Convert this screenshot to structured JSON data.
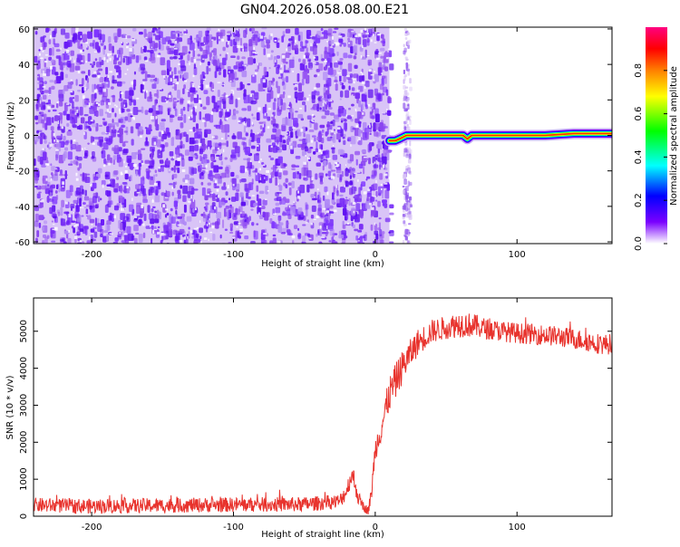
{
  "title": "GN04.2026.058.08.00.E21",
  "chart_data": [
    {
      "type": "heatmap",
      "xlabel": "Height of straight line (km)",
      "ylabel": "Frequency (Hz)",
      "xlim": [
        -241,
        167
      ],
      "ylim": [
        -61,
        61
      ],
      "xticks": [
        -200,
        -100,
        0,
        100
      ],
      "yticks": [
        -60,
        -40,
        -20,
        0,
        20,
        40,
        60
      ],
      "grid": false,
      "noise_region": {
        "x": [
          -241,
          10
        ],
        "dominant_amplitude": 0.1
      },
      "noise_strip": {
        "x": [
          19,
          24
        ],
        "dominant_amplitude": 0.05
      },
      "signal_line": {
        "x": [
          10,
          167
        ],
        "frequency_hz": 0,
        "peak_amplitude": 1.0,
        "points": [
          [
            10,
            -3
          ],
          [
            14,
            -3
          ],
          [
            17,
            -2
          ],
          [
            22,
            0
          ],
          [
            30,
            0
          ],
          [
            50,
            0
          ],
          [
            62,
            0
          ],
          [
            65,
            -2
          ],
          [
            68,
            0
          ],
          [
            90,
            0
          ],
          [
            120,
            0
          ],
          [
            140,
            1
          ],
          [
            167,
            1
          ]
        ]
      },
      "colorbar": {
        "label": "Normalized spectral amplitude",
        "range": [
          0,
          1
        ],
        "ticks": [
          0.0,
          0.2,
          0.4,
          0.6,
          0.8
        ],
        "tick_labels": [
          "0.0",
          "0.2",
          "0.4",
          "0.6",
          "0.8"
        ],
        "colors": [
          "#ffffff",
          "#7a00ff",
          "#0000ff",
          "#00ffff",
          "#00ff00",
          "#ffff00",
          "#ff8000",
          "#ff0000",
          "#ff0080"
        ]
      }
    },
    {
      "type": "line",
      "xlabel": "Height of straight line (km)",
      "ylabel": "SNR (10 * v/v)",
      "xlim": [
        -241,
        167
      ],
      "ylim": [
        0,
        5900
      ],
      "xticks": [
        -200,
        -100,
        0,
        100
      ],
      "yticks": [
        0,
        1000,
        2000,
        3000,
        4000,
        5000
      ],
      "grid": false,
      "color": "#e8332d",
      "series": [
        {
          "x": [
            -241,
            -200,
            -150,
            -100,
            -50,
            -25,
            -20,
            -17,
            -15,
            -12,
            -8,
            -5,
            -3,
            0,
            5,
            10,
            15,
            20,
            25,
            30,
            40,
            50,
            60,
            70,
            80,
            100,
            120,
            140,
            160,
            167
          ],
          "y": [
            300,
            270,
            290,
            310,
            320,
            400,
            700,
            1100,
            1000,
            500,
            250,
            150,
            500,
            1800,
            2500,
            3300,
            3700,
            4100,
            4400,
            4700,
            5000,
            5100,
            5200,
            5150,
            5050,
            4950,
            4900,
            4800,
            4650,
            4650
          ],
          "noise_amplitude": [
            250,
            250,
            250,
            250,
            250,
            250,
            300,
            350,
            350,
            250,
            150,
            150,
            300,
            400,
            500,
            600,
            600,
            550,
            500,
            450,
            400,
            400,
            450,
            400,
            350,
            350,
            350,
            350,
            350,
            350
          ]
        }
      ]
    }
  ]
}
